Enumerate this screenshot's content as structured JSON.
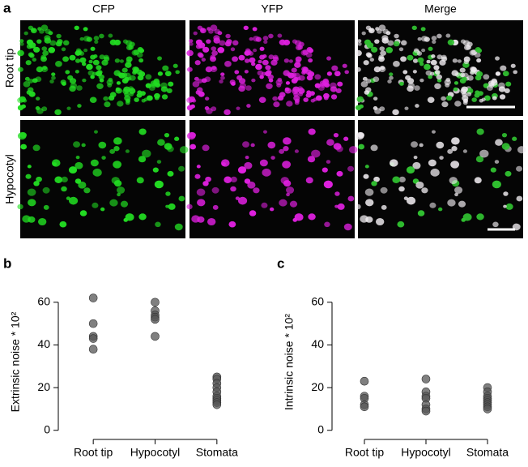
{
  "panel_a": {
    "label": "a",
    "columns": [
      "CFP",
      "YFP",
      "Merge"
    ],
    "rows": [
      "Root tip",
      "Hypocotyl"
    ]
  },
  "chart_data": [
    {
      "type": "strip",
      "panel_label": "b",
      "ylabel": "Extrinsic noise * 10²",
      "categories": [
        "Root tip",
        "Hypocotyl",
        "Stomata"
      ],
      "values": [
        [
          62,
          50,
          44,
          43,
          38
        ],
        [
          60,
          56,
          54,
          53,
          52,
          44
        ],
        [
          25,
          24,
          22,
          20,
          18,
          16,
          15,
          14,
          13,
          12
        ]
      ],
      "color": "#555555",
      "ylim": [
        -2,
        66
      ],
      "yticks": [
        0,
        20,
        40,
        60
      ]
    },
    {
      "type": "strip",
      "panel_label": "c",
      "ylabel": "Intrinsic noise * 10²",
      "categories": [
        "Root tip",
        "Hypocotyl",
        "Stomata"
      ],
      "values": [
        [
          23,
          16,
          15,
          12,
          11
        ],
        [
          24,
          18,
          16,
          15,
          12,
          10,
          9
        ],
        [
          20,
          18,
          16,
          15,
          14,
          13,
          12,
          11,
          10
        ]
      ],
      "color": "#555555",
      "ylim": [
        -2,
        66
      ],
      "yticks": [
        0,
        20,
        40,
        60
      ]
    }
  ]
}
